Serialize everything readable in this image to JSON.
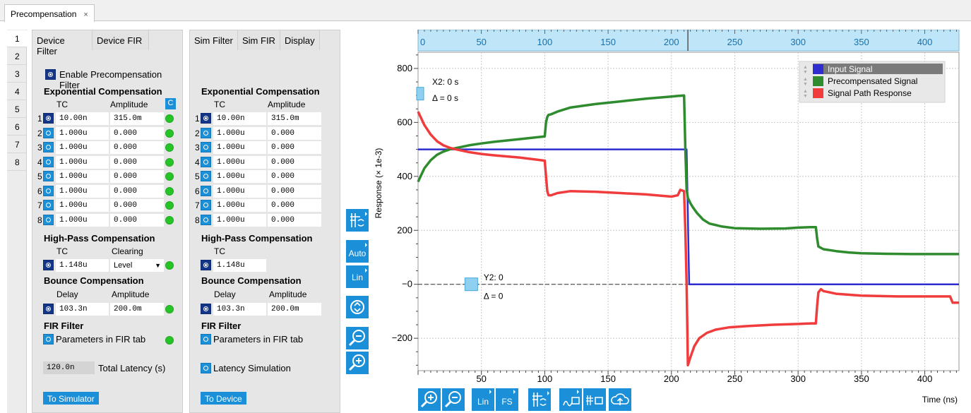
{
  "window": {
    "tab_title": "Precompensation",
    "tab_close": "×"
  },
  "side_tabs": [
    "1",
    "2",
    "3",
    "4",
    "5",
    "6",
    "7",
    "8"
  ],
  "device": {
    "tabs": [
      "Device Filter",
      "Device FIR"
    ],
    "enable_label": "Enable Precompensation Filter",
    "exp_title": "Exponential Compensation",
    "col_tc": "TC",
    "col_amp": "Amplitude",
    "c_btn": "C",
    "rows": [
      {
        "n": "1",
        "tc": "10.00n",
        "amp": "315.0m",
        "on": true
      },
      {
        "n": "2",
        "tc": "1.000u",
        "amp": "0.000",
        "on": false
      },
      {
        "n": "3",
        "tc": "1.000u",
        "amp": "0.000",
        "on": false
      },
      {
        "n": "4",
        "tc": "1.000u",
        "amp": "0.000",
        "on": false
      },
      {
        "n": "5",
        "tc": "1.000u",
        "amp": "0.000",
        "on": false
      },
      {
        "n": "6",
        "tc": "1.000u",
        "amp": "0.000",
        "on": false
      },
      {
        "n": "7",
        "tc": "1.000u",
        "amp": "0.000",
        "on": false
      },
      {
        "n": "8",
        "tc": "1.000u",
        "amp": "0.000",
        "on": false
      }
    ],
    "hp_title": "High-Pass Compensation",
    "hp_col_tc": "TC",
    "hp_col_clear": "Clearing",
    "hp_tc": "1.148u",
    "hp_clear": "Level",
    "bounce_title": "Bounce Compensation",
    "b_col_delay": "Delay",
    "b_col_amp": "Amplitude",
    "b_delay": "103.3n",
    "b_amp": "200.0m",
    "fir_title": "FIR Filter",
    "fir_label": "Parameters in FIR tab",
    "latency_value": "120.0n",
    "latency_label": "Total Latency (s)",
    "to_button": "To Simulator"
  },
  "sim": {
    "tabs": [
      "Sim Filter",
      "Sim FIR",
      "Display"
    ],
    "exp_title": "Exponential Compensation",
    "col_tc": "TC",
    "col_amp": "Amplitude",
    "rows": [
      {
        "n": "1",
        "tc": "10.00n",
        "amp": "315.0m",
        "on": true
      },
      {
        "n": "2",
        "tc": "1.000u",
        "amp": "0.000",
        "on": false
      },
      {
        "n": "3",
        "tc": "1.000u",
        "amp": "0.000",
        "on": false
      },
      {
        "n": "4",
        "tc": "1.000u",
        "amp": "0.000",
        "on": false
      },
      {
        "n": "5",
        "tc": "1.000u",
        "amp": "0.000",
        "on": false
      },
      {
        "n": "6",
        "tc": "1.000u",
        "amp": "0.000",
        "on": false
      },
      {
        "n": "7",
        "tc": "1.000u",
        "amp": "0.000",
        "on": false
      },
      {
        "n": "8",
        "tc": "1.000u",
        "amp": "0.000",
        "on": false
      }
    ],
    "hp_title": "High-Pass Compensation",
    "hp_col_tc": "TC",
    "hp_tc": "1.148u",
    "bounce_title": "Bounce Compensation",
    "b_col_delay": "Delay",
    "b_col_amp": "Amplitude",
    "b_delay": "103.3n",
    "b_amp": "200.0m",
    "fir_title": "FIR Filter",
    "fir_label": "Parameters in FIR tab",
    "latency_label": "Latency Simulation",
    "to_button": "To Device"
  },
  "toolbar": {
    "auto": "Auto",
    "lin": "Lin",
    "bottom_lin": "Lin",
    "bottom_fs": "FS"
  },
  "cursors": {
    "x2": "X2: 0 s",
    "dx": "Δ = 0 s",
    "y2": "Y2: 0",
    "dy": "Δ = 0"
  },
  "colors": {
    "input": "#2d2dd0",
    "precomp": "#2e8b2e",
    "path": "#f03c3c",
    "accent": "#1b8fd8",
    "axisbar": "#bfe6f8"
  },
  "chart_data": {
    "type": "line",
    "ylabel": "Response (× 1e-3)",
    "xlabel": "Time (ns)",
    "xlim": [
      0,
      427
    ],
    "ylim": [
      -320,
      860
    ],
    "xticks": [
      0,
      50,
      100,
      150,
      200,
      250,
      300,
      350,
      400
    ],
    "xtick_labels": [
      "0",
      "50",
      "100",
      "150",
      "200",
      "250",
      "300",
      "350",
      "400"
    ],
    "yticks": [
      800,
      600,
      400,
      200,
      0,
      -200
    ],
    "ytick_labels": [
      "800",
      "600",
      "400",
      "200",
      "−0",
      "−200"
    ],
    "grid": true,
    "legend_position": "top-right",
    "series": [
      {
        "name": "Input Signal",
        "color": "#2d2dd0",
        "x": [
          0,
          212,
          214,
          427
        ],
        "y": [
          500,
          500,
          0,
          0
        ]
      },
      {
        "name": "Precompensated Signal",
        "color": "#2e8b2e",
        "x": [
          0,
          2,
          5,
          10,
          15,
          20,
          25,
          30,
          40,
          50,
          60,
          80,
          100,
          101,
          102,
          103,
          105,
          110,
          120,
          140,
          160,
          180,
          200,
          205,
          210,
          211,
          212,
          213,
          215,
          217,
          220,
          225,
          230,
          240,
          250,
          270,
          290,
          300,
          310,
          314,
          315,
          316,
          320,
          330,
          340,
          350,
          370,
          390,
          410,
          427
        ],
        "y": [
          380,
          400,
          430,
          460,
          480,
          492,
          500,
          505,
          515,
          522,
          528,
          538,
          548,
          600,
          620,
          628,
          630,
          640,
          655,
          668,
          678,
          688,
          696,
          698,
          700,
          500,
          350,
          320,
          300,
          285,
          265,
          240,
          225,
          214,
          208,
          206,
          207,
          210,
          212,
          212,
          170,
          140,
          130,
          123,
          118,
          115,
          113,
          112,
          112,
          112
        ]
      },
      {
        "name": "Signal Path Response",
        "color": "#f03c3c",
        "x": [
          0,
          2,
          5,
          10,
          15,
          20,
          25,
          30,
          40,
          50,
          60,
          80,
          100,
          101,
          102,
          103,
          105,
          110,
          120,
          140,
          160,
          180,
          200,
          205,
          207,
          210,
          211,
          212,
          213,
          215,
          218,
          222,
          228,
          235,
          245,
          260,
          280,
          300,
          310,
          314,
          315,
          316,
          318,
          320,
          330,
          350,
          380,
          410,
          420,
          422,
          427
        ],
        "y": [
          640,
          620,
          590,
          555,
          530,
          515,
          506,
          500,
          490,
          483,
          478,
          470,
          458,
          400,
          345,
          330,
          330,
          338,
          345,
          343,
          338,
          333,
          325,
          330,
          350,
          345,
          200,
          0,
          -300,
          -270,
          -230,
          -200,
          -180,
          -168,
          -160,
          -155,
          -150,
          -147,
          -145,
          -145,
          -80,
          -30,
          -18,
          -25,
          -35,
          -42,
          -45,
          -45,
          -45,
          -68,
          -68
        ]
      }
    ]
  }
}
